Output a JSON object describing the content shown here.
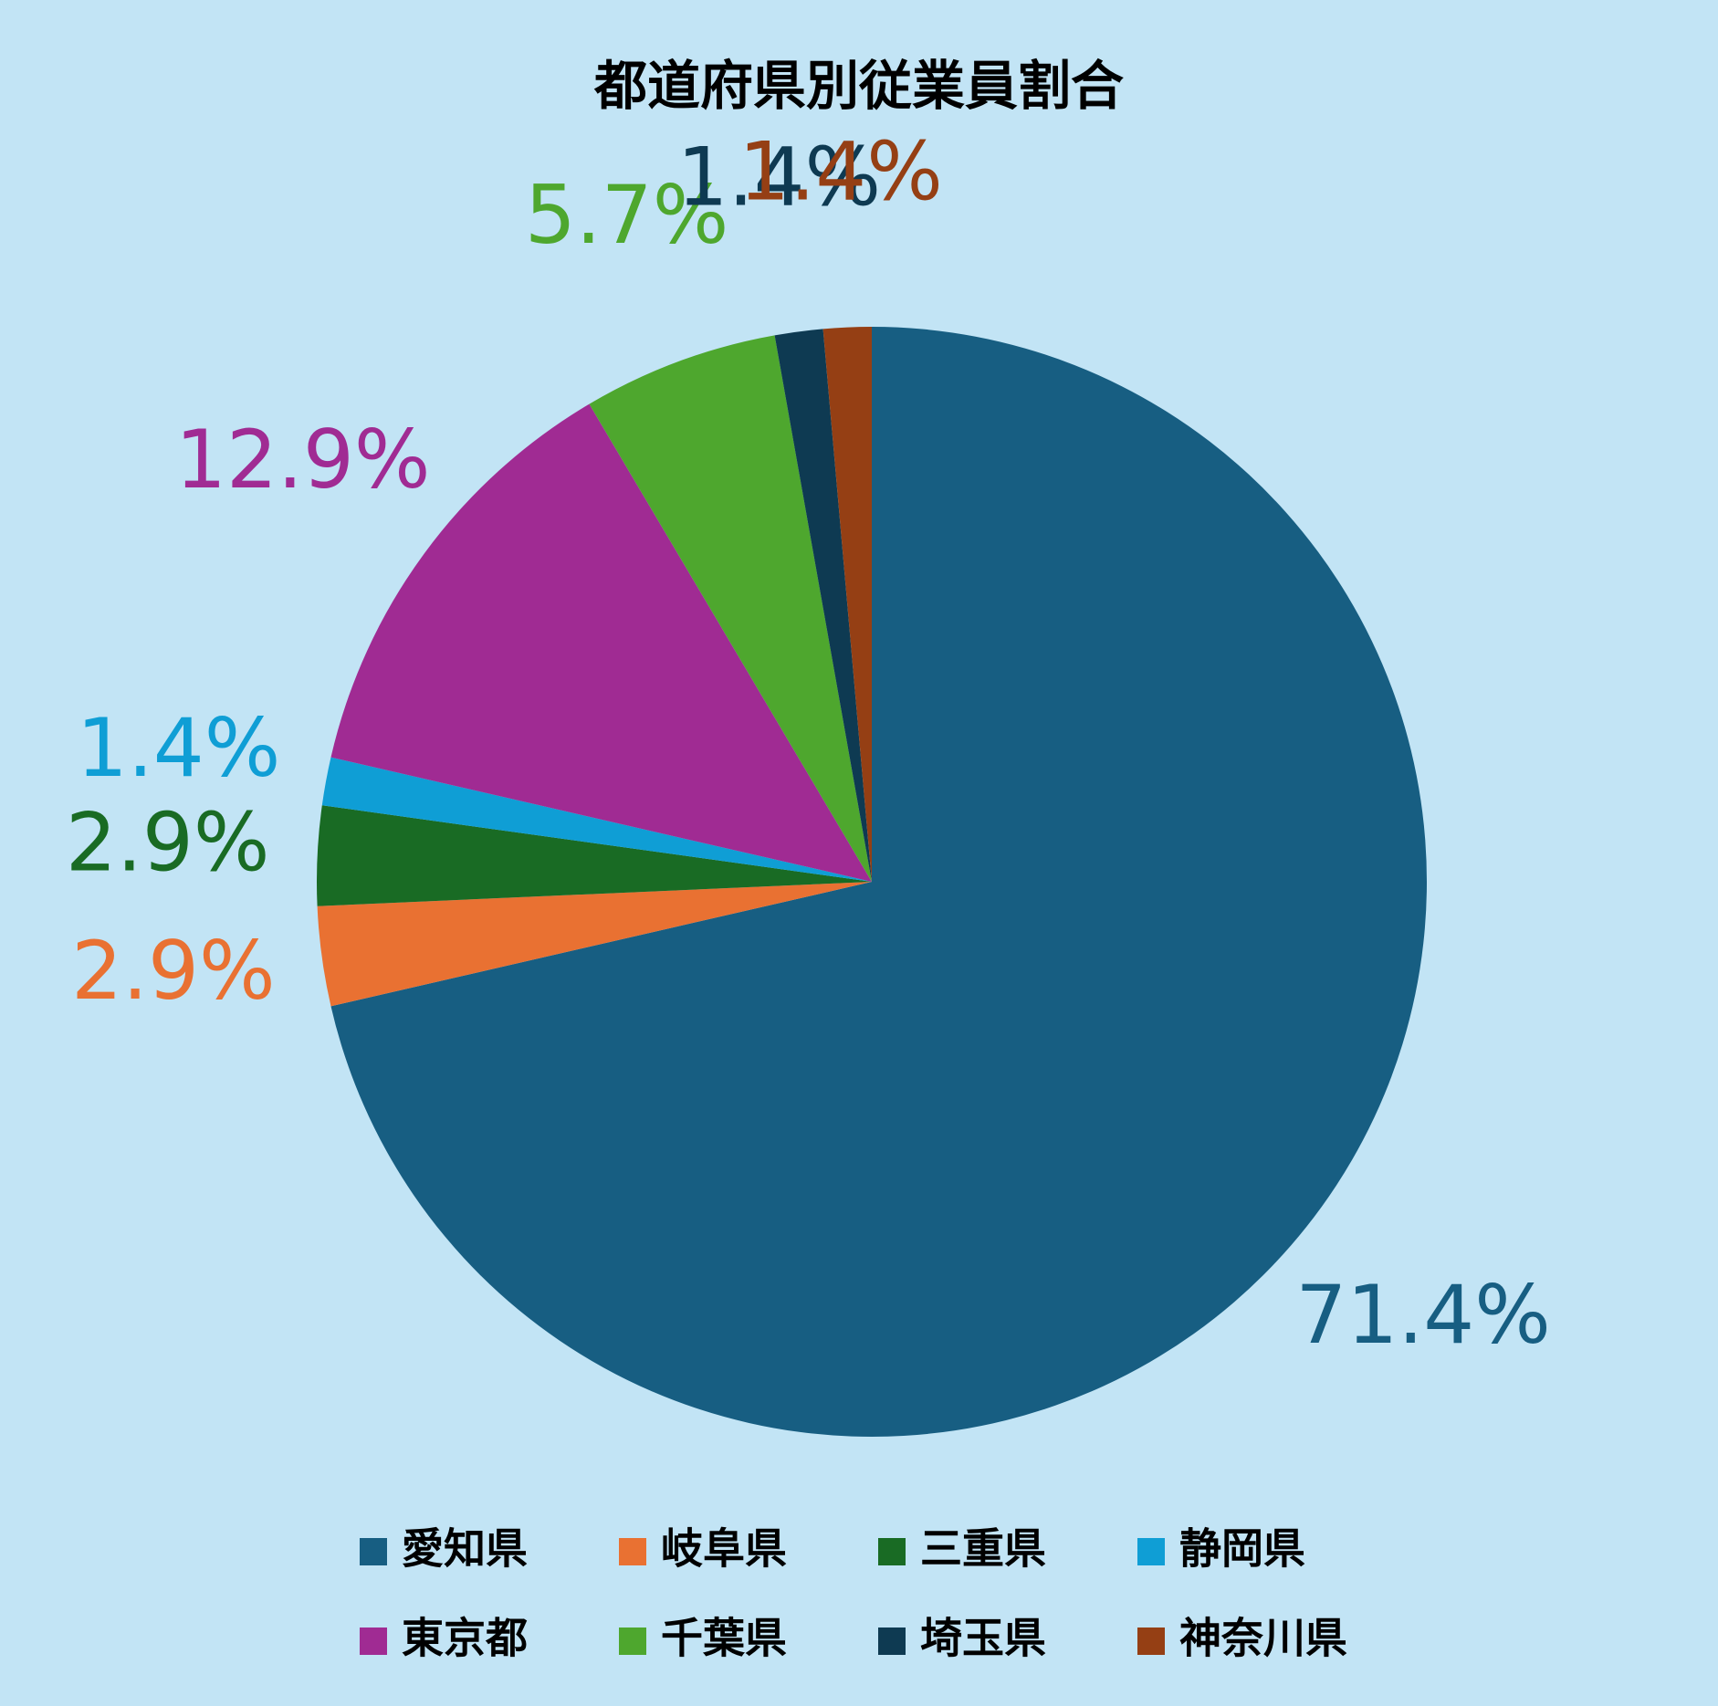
{
  "chart_data": {
    "type": "pie",
    "title": "都道府県別従業員割合",
    "categories": [
      "愛知県",
      "岐阜県",
      "三重県",
      "静岡県",
      "東京都",
      "千葉県",
      "埼玉県",
      "神奈川県"
    ],
    "values": [
      71.4,
      2.9,
      2.9,
      1.4,
      12.9,
      5.7,
      1.4,
      1.4
    ],
    "value_labels": [
      "71.4%",
      "2.9%",
      "2.9%",
      "1.4%",
      "12.9%",
      "5.7%",
      "1.4%",
      "1.4%"
    ],
    "colors": [
      "#175e82",
      "#e97132",
      "#196b24",
      "#0f9ed5",
      "#a02b93",
      "#4ea72e",
      "#0e3a52",
      "#953f14"
    ],
    "legend": "bottom"
  }
}
